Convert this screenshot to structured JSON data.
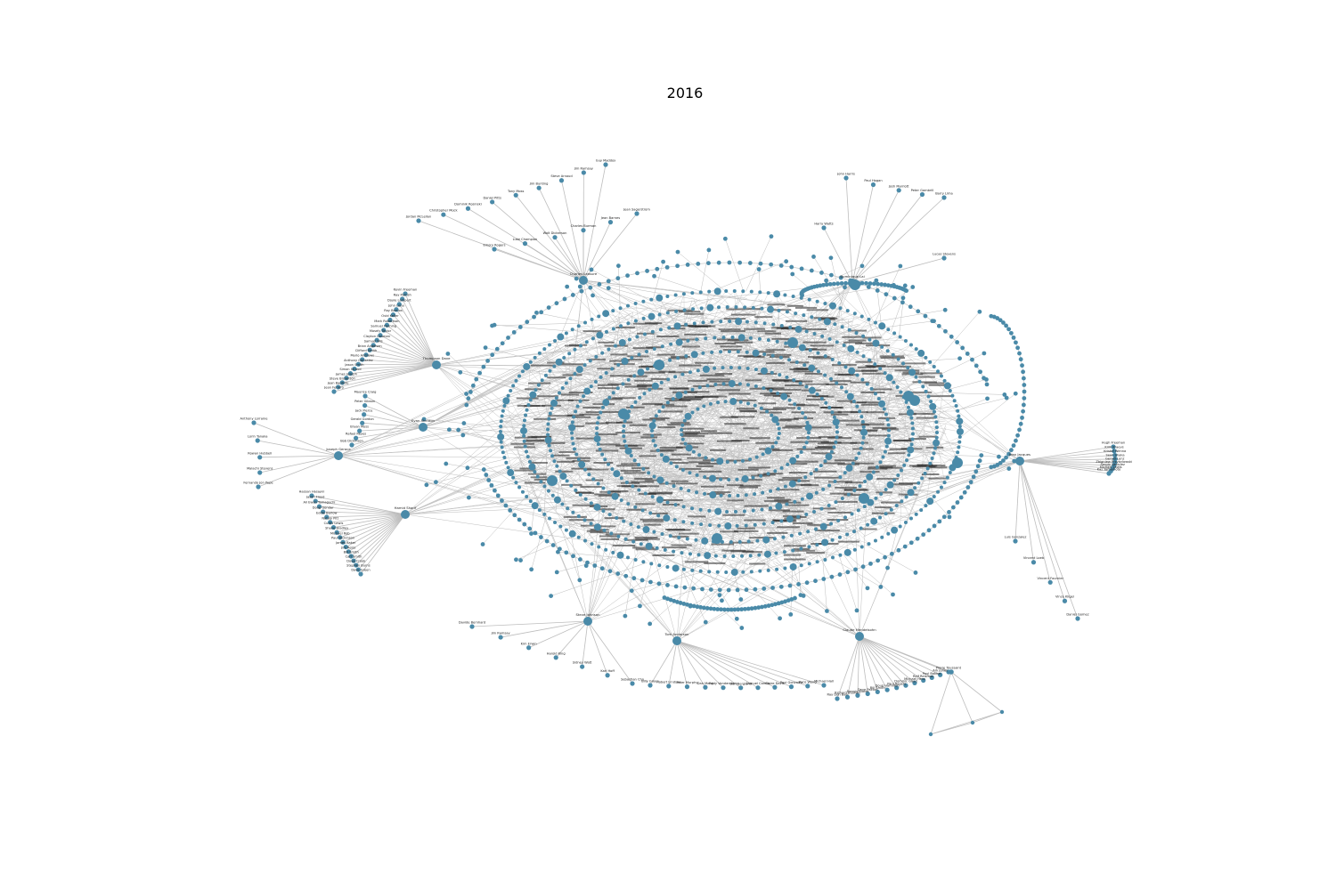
{
  "figure": {
    "title": "2016",
    "colors": {
      "node": "#4a8aa8",
      "edge": "#bdbdbd",
      "label": "#222222",
      "core": "#2f5f78"
    }
  },
  "graph": {
    "clusters": [
      {
        "id": "top-left",
        "hub": "Charles Leasure",
        "labels": [
          "Jordan McLellan",
          "Christopher Mock",
          "Dominik Rosinski",
          "Daniel Pitts",
          "Tony Moss",
          "Jim Bunting",
          "Steve Arnaud",
          "Jim Ramsay",
          "Guy Maddox",
          "Emory Rogers",
          "Luke Champion",
          "Walt Dickerson",
          "Charles Burman",
          "Jean Barnes",
          "Jean Sagerstrom"
        ]
      },
      {
        "id": "top-right",
        "hub": "Dominique Lai",
        "labels": [
          "John Harris",
          "Paul Hogan",
          "Josh Marriott",
          "Peter Gambrill",
          "Barry Lima",
          "Harry Watts",
          "Lucas Stevens"
        ]
      },
      {
        "id": "left-upper",
        "hub": "Thompson Dave",
        "labels": [
          "Kevin Freeman",
          "Ray Parrish",
          "Doyle Lampert",
          "John Lena",
          "Ray Barrios",
          "Ovid Keller",
          "Mark Robertson",
          "Samuel Fleming",
          "Mosely Taylor",
          "Clayton Gusman",
          "Samuel Wis",
          "Brian Angelsen",
          "Clifford Smith",
          "Mario Andrews",
          "Anthony Gonzalez",
          "Jason Smith",
          "Simon Stroud",
          "James Joseph",
          "Steve Brownson",
          "Jean Baptiste",
          "Jean Ferrero"
        ]
      },
      {
        "id": "left-mid",
        "hub": "Evan Sheldon",
        "labels": [
          "Maurice Craig",
          "Peter Gibson",
          "Jack Pierce",
          "Gerald Gordon",
          "Bryan Moss",
          "Rafael Reyes",
          "Bob Dickinson"
        ]
      },
      {
        "id": "far-left",
        "hub": "Joseph Gerace",
        "labels": [
          "Anthony Lorraine",
          "Lorin Tanaka",
          "Rowan Hubbell",
          "Malachi Stevens",
          "Fernando Jon Pepe"
        ]
      },
      {
        "id": "left-lower",
        "hub": "Hamid Sharif",
        "labels": [
          "Hassan Hasayni",
          "Jason Floyd",
          "Ali Ewan Yamaguchi",
          "Doug Gondar",
          "Eddie Barlow",
          "Nataly Pitt",
          "Curtis Lewis",
          "Shane Bradley",
          "Michael Rob",
          "Paul Dickinson",
          "James Baker",
          "Jim Reiss",
          "Bill Smith",
          "Carl Smith",
          "Doug Crook",
          "Stephen Burns",
          "Dave Green"
        ]
      },
      {
        "id": "bottom-left",
        "hub": "Steve Johnson",
        "labels": [
          "Davide Bernhard",
          "Jim Ramsay",
          "Kim Erwin",
          "Harold King",
          "Sidney Watt",
          "Karl Hoff",
          "Sebastian Cho"
        ]
      },
      {
        "id": "bottom-center",
        "hub": "Tom Anderson",
        "labels": [
          "Billy Green",
          "Robert Lindsay",
          "Peter Murphy",
          "Dan Meng",
          "Eddy Vonderstern",
          "Dan Bergland",
          "Samuel Camilo",
          "Claire Davis",
          "Paul Gonzalez",
          "Paco Wong",
          "Michael Hall"
        ]
      },
      {
        "id": "bottom-right",
        "hub": "Claude Mendelsohn",
        "labels": [
          "Ray Don Ball",
          "Richard Stewart",
          "Dennis Stater",
          "Dave Paxton",
          "Bill Smith",
          "Doug Hamilton",
          "Paul Rogers",
          "Dominic Good",
          "Michael Hess",
          "Ralf Reisman",
          "Paul Bakker",
          "Ark Jones",
          "Pierre Toussaint"
        ]
      },
      {
        "id": "right",
        "hub": "Jean Jacques",
        "labels": [
          "Hugh Freeman",
          "Kirill Kraevs",
          "Kristof Wenna",
          "Sean Shaka",
          "Gerald Lenz",
          "Zbigniew Przybylowski",
          "Sergio Vasquez",
          "Michael Lewis",
          "Kaz Yamamoto",
          "Luis Gonzalez",
          "Vincent Loeb",
          "Vincent Fournier",
          "Vince Kligel",
          "Daniel Gomez"
        ]
      }
    ]
  }
}
